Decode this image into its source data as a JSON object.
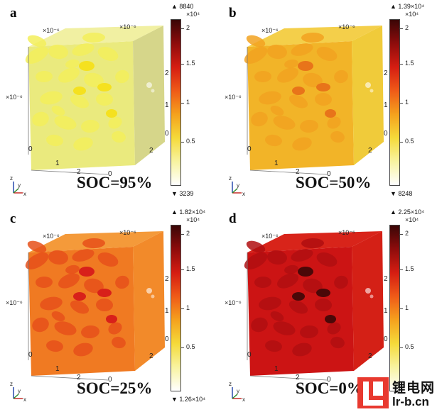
{
  "panels": [
    {
      "label": "a",
      "soc": "SOC=95%",
      "max_label": "▲ 8840",
      "min_label": "▼ 3239",
      "cb_exponent": "×10⁴",
      "colors": {
        "base": "#eaea7e",
        "side": "#d6d68a",
        "top": "#f1f0a2",
        "pore": "#f3ee5a",
        "hi": "#f5e11f"
      }
    },
    {
      "label": "b",
      "soc": "SOC=50%",
      "max_label": "▲ 1.39×10⁴",
      "min_label": "▼ 8248",
      "cb_exponent": "×10⁴",
      "colors": {
        "base": "#f2b428",
        "side": "#f0cb3a",
        "top": "#f4cf4a",
        "pore": "#f2a220",
        "hi": "#e8741a"
      }
    },
    {
      "label": "c",
      "soc": "SOC=25%",
      "max_label": "▲ 1.82×10⁴",
      "min_label": "▼ 1.26×10⁴",
      "cb_exponent": "×10⁴",
      "colors": {
        "base": "#f07a22",
        "side": "#f28a2a",
        "top": "#f49a3a",
        "pore": "#e6501a",
        "hi": "#d8201a"
      }
    },
    {
      "label": "d",
      "soc": "SOC=0%",
      "max_label": "▲ 2.25×10⁴",
      "min_label": "",
      "cb_exponent": "×10⁴",
      "colors": {
        "base": "#cc1414",
        "side": "#d42016",
        "top": "#d8241a",
        "pore": "#b00e10",
        "hi": "#4a0808"
      }
    }
  ],
  "axis_text": {
    "sci_x": "×10⁻⁶",
    "x_ticks": [
      "0",
      "1",
      "2"
    ],
    "y_ticks": [
      "0",
      "2"
    ],
    "z_ticks": [
      "0",
      "1",
      "2"
    ],
    "axis_z": "z",
    "axis_y": "y",
    "axis_x": "x"
  },
  "colorbar": {
    "ticks": [
      "2",
      "1.5",
      "1",
      "0.5"
    ],
    "stops": [
      "#3a0606",
      "#8e0c0c",
      "#d51d12",
      "#ef5a18",
      "#f5a11d",
      "#f5da3a",
      "#f8f3a0",
      "#ffffff"
    ]
  },
  "logo": {
    "cn": "锂电网",
    "url": "lr-b.cn"
  }
}
